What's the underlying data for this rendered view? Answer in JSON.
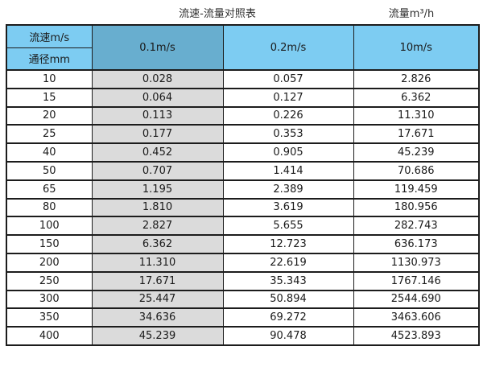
{
  "page": {
    "title": "流速-流量对照表",
    "unit_label": "流量m³/h"
  },
  "table": {
    "corner_top": "流速m/s",
    "corner_bottom": "通径mm",
    "column_headers": [
      "0.1m/s",
      "0.2m/s",
      "10m/s"
    ],
    "rows": [
      [
        "10",
        "0.028",
        "0.057",
        "2.826"
      ],
      [
        "15",
        "0.064",
        "0.127",
        "6.362"
      ],
      [
        "20",
        "0.113",
        "0.226",
        "11.310"
      ],
      [
        "25",
        "0.177",
        "0.353",
        "17.671"
      ],
      [
        "40",
        "0.452",
        "0.905",
        "45.239"
      ],
      [
        "50",
        "0.707",
        "1.414",
        "70.686"
      ],
      [
        "65",
        "1.195",
        "2.389",
        "119.459"
      ],
      [
        "80",
        "1.810",
        "3.619",
        "180.956"
      ],
      [
        "100",
        "2.827",
        "5.655",
        "282.743"
      ],
      [
        "150",
        "6.362",
        "12.723",
        "636.173"
      ],
      [
        "200",
        "11.310",
        "22.619",
        "1130.973"
      ],
      [
        "250",
        "17.671",
        "35.343",
        "1767.146"
      ],
      [
        "300",
        "25.447",
        "50.894",
        "2544.690"
      ],
      [
        "350",
        "34.636",
        "69.272",
        "3463.606"
      ],
      [
        "400",
        "45.239",
        "90.478",
        "4523.893"
      ]
    ]
  },
  "colors": {
    "header_blue": "#7DCCF2",
    "header_blue_dark": "#68AECF",
    "highlight_gray": "#DBDBDB",
    "border": "#1C1C1C",
    "text": "#1A1A1A"
  }
}
